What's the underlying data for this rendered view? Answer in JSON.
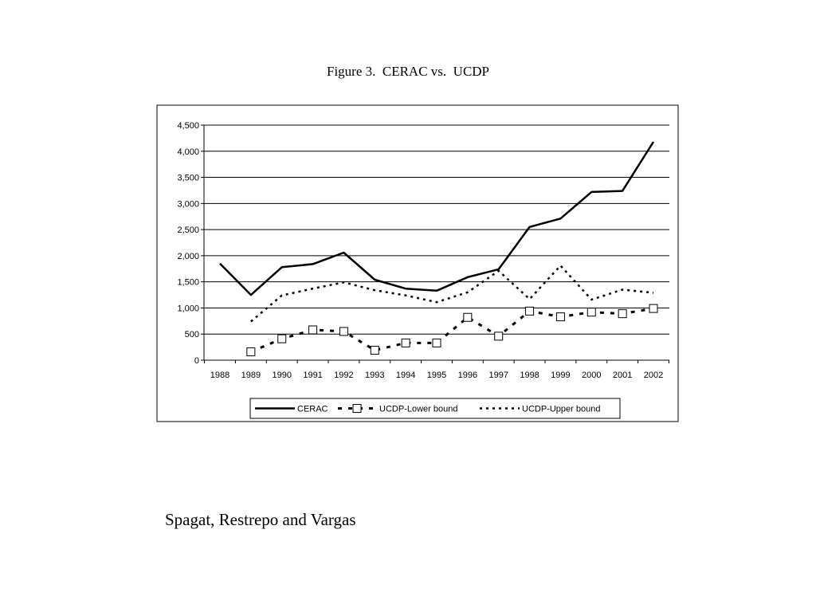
{
  "title": "Figure 3.  CERAC vs.  UCDP",
  "caption": "Spagat, Restrepo and Vargas",
  "chart_data": {
    "type": "line",
    "title": "Figure 3.  CERAC vs.  UCDP",
    "xlabel": "",
    "ylabel": "",
    "categories": [
      "1988",
      "1989",
      "1990",
      "1991",
      "1992",
      "1993",
      "1994",
      "1995",
      "1996",
      "1997",
      "1998",
      "1999",
      "2000",
      "2001",
      "2002"
    ],
    "ylim": [
      0,
      4500
    ],
    "yticks": [
      0,
      500,
      1000,
      1500,
      2000,
      2500,
      3000,
      3500,
      4000,
      4500
    ],
    "ytick_labels": [
      "0",
      "500",
      "1,000",
      "1,500",
      "2,000",
      "2,500",
      "3,000",
      "3,500",
      "4,000",
      "4,500"
    ],
    "grid": "horizontal",
    "legend_position": "bottom",
    "series": [
      {
        "name": "CERAC",
        "style": "solid",
        "color": "#000000",
        "values": [
          1850,
          1250,
          1780,
          1840,
          2060,
          1540,
          1370,
          1330,
          1590,
          1740,
          2550,
          2710,
          3220,
          3240,
          4180
        ]
      },
      {
        "name": "UCDP-Lower bound",
        "style": "dashed-square-markers",
        "color": "#000000",
        "values": [
          null,
          160,
          410,
          580,
          550,
          190,
          330,
          330,
          820,
          460,
          940,
          830,
          920,
          890,
          990
        ]
      },
      {
        "name": "UCDP-Upper bound",
        "style": "dotted",
        "color": "#000000",
        "values": [
          null,
          740,
          1240,
          1370,
          1490,
          1340,
          1240,
          1110,
          1300,
          1710,
          1170,
          1810,
          1160,
          1350,
          1290
        ]
      }
    ]
  }
}
